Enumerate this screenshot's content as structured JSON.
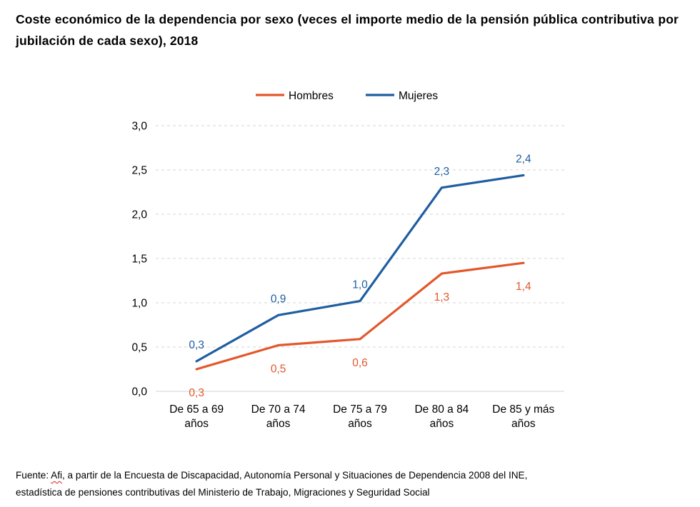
{
  "title": "Coste económico de la dependencia por sexo (veces el importe medio de la pensión pública contributiva por jubilación de cada sexo), 2018",
  "chart_data": {
    "type": "line",
    "categories": [
      [
        "De 65 a 69",
        "años"
      ],
      [
        "De 70 a 74",
        "años"
      ],
      [
        "De 75 a 79",
        "años"
      ],
      [
        "De 80 a 84",
        "años"
      ],
      [
        "De 85 y más",
        "años"
      ]
    ],
    "series": [
      {
        "name": "Hombres",
        "color": "#e2572b",
        "values": [
          0.25,
          0.52,
          0.59,
          1.33,
          1.45
        ],
        "labels": [
          "0,3",
          "0,5",
          "0,6",
          "1,3",
          "1,4"
        ],
        "label_position": "below"
      },
      {
        "name": "Mujeres",
        "color": "#1f5ea1",
        "values": [
          0.34,
          0.86,
          1.02,
          2.3,
          2.44
        ],
        "labels": [
          "0,3",
          "0,9",
          "1,0",
          "2,3",
          "2,4"
        ],
        "label_position": "above"
      }
    ],
    "ylim": [
      0,
      3
    ],
    "yticks": [
      0,
      0.5,
      1.0,
      1.5,
      2.0,
      2.5,
      3.0
    ],
    "ytick_labels": [
      "0,0",
      "0,5",
      "1,0",
      "1,5",
      "2,0",
      "2,5",
      "3,0"
    ],
    "grid": "horizontal dashed",
    "legend_position": "top-center",
    "xlabel": "",
    "ylabel": ""
  },
  "source": {
    "prefix": "Fuente: ",
    "afi": "Afi",
    "line1_rest": ", a partir de la Encuesta de Discapacidad, Autonomía Personal y Situaciones de Dependencia 2008 del INE,",
    "line2": "estadística de pensiones contributivas del Ministerio de Trabajo, Migraciones y Seguridad Social"
  }
}
